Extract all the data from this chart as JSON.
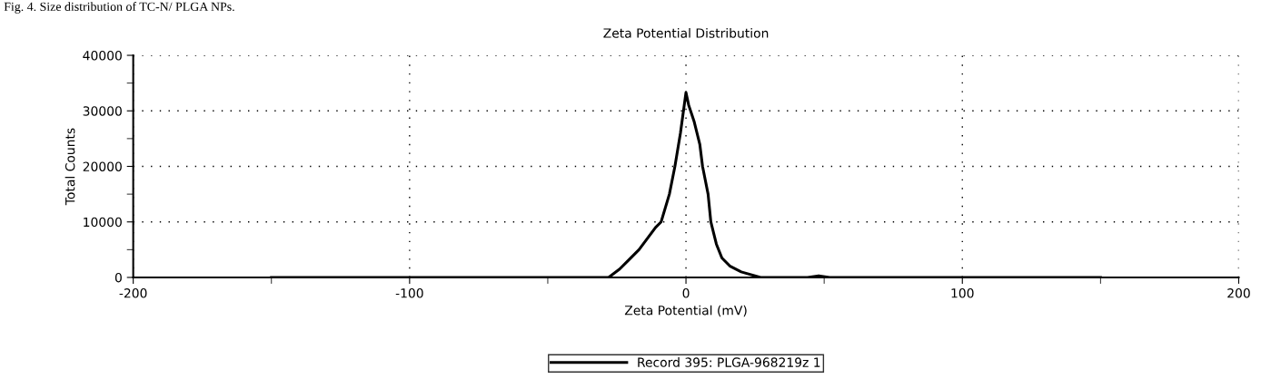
{
  "chart_data": {
    "type": "line",
    "title": "Zeta Potential Distribution",
    "xlabel": "Zeta Potential (mV)",
    "ylabel": "Total Counts",
    "annotations": [
      "Fig. 4. Size distribution of TC-N/ PLGA NPs."
    ],
    "x": [
      -150,
      -28,
      -24,
      -21,
      -17,
      -14,
      -11,
      -9,
      -6,
      -4,
      -2,
      0,
      1,
      3,
      5,
      6,
      8,
      9,
      11,
      13,
      16,
      20,
      27,
      44,
      48,
      52,
      150
    ],
    "series": [
      {
        "name": "Record 395: PLGA-968219z 1",
        "color": "#000000",
        "values": [
          0,
          0,
          1500,
          3000,
          5000,
          7000,
          9000,
          10000,
          15000,
          20000,
          26000,
          33300,
          31000,
          28000,
          24000,
          20000,
          15000,
          10000,
          6000,
          3500,
          2000,
          1000,
          0,
          0,
          300,
          0,
          0
        ]
      }
    ],
    "xlim": [
      -200,
      200
    ],
    "xticks": [
      -200,
      {
        "value": -150,
        "label": null
      },
      -100,
      {
        "value": -50,
        "label": null
      },
      0,
      {
        "value": 50,
        "label": null
      },
      100,
      {
        "value": 150,
        "label": null
      },
      200
    ],
    "ylim": [
      0,
      40000
    ],
    "yticks": [
      0,
      {
        "value": 5000,
        "label": null
      },
      10000,
      {
        "value": 15000,
        "label": null
      },
      20000,
      {
        "value": 25000,
        "label": null
      },
      30000,
      {
        "value": 35000,
        "label": null
      },
      40000
    ],
    "grid": true,
    "legend": "bottom",
    "marker": "none",
    "line_style": "solid"
  }
}
